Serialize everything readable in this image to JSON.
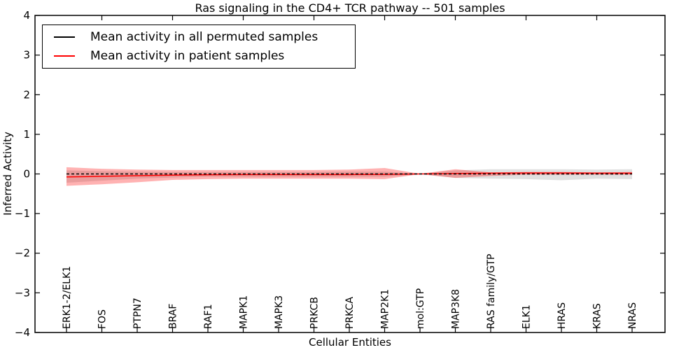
{
  "title": "Ras signaling in the CD4+ TCR pathway -- 501 samples",
  "axes": {
    "ylabel": "Inferred Activity",
    "xlabel": "Cellular Entities"
  },
  "legend": {
    "items": [
      {
        "label": "Mean activity in all permuted samples",
        "color": "#000000",
        "linestyle": "dashed"
      },
      {
        "label": "Mean activity in patient samples",
        "color": "#ff0000",
        "linestyle": "solid"
      }
    ],
    "position": "upper left"
  },
  "colors": {
    "frame": "#000000",
    "background": "#ffffff",
    "permuted_line": "#000000",
    "patient_line": "#ff0000",
    "permuted_band": "#000000",
    "patient_band": "#ff0000"
  },
  "chart_data": {
    "type": "line",
    "title": "Ras signaling in the CD4+ TCR pathway -- 501 samples",
    "xlabel": "Cellular Entities",
    "ylabel": "Inferred Activity",
    "ylim": [
      -4,
      4
    ],
    "yticks": [
      4,
      3,
      2,
      1,
      0,
      -1,
      -2,
      -3,
      -4
    ],
    "ytick_labels": [
      "4",
      "3",
      "2",
      "1",
      "0",
      "−1",
      "−2",
      "−3",
      "−4"
    ],
    "grid": false,
    "legend_position": "upper left",
    "categories": [
      "ERK1-2/ELK1",
      "FOS",
      "PTPN7",
      "BRAF",
      "RAF1",
      "MAPK1",
      "MAPK3",
      "PRKCB",
      "PRKCA",
      "MAP2K1",
      "mol:GTP",
      "MAP3K8",
      "RAS family/GTP",
      "ELK1",
      "HRAS",
      "KRAS",
      "NRAS"
    ],
    "series": [
      {
        "name": "Mean activity in all permuted samples",
        "color": "#000000",
        "linestyle": "dashed",
        "values": [
          0,
          0,
          0,
          0,
          0,
          0,
          0,
          0,
          0,
          0,
          0,
          0,
          0,
          0,
          0,
          0,
          0
        ]
      },
      {
        "name": "Mean activity in patient samples",
        "color": "#ff0000",
        "linestyle": "solid",
        "values": [
          -0.075,
          -0.06,
          -0.045,
          -0.03,
          -0.02,
          -0.015,
          -0.015,
          -0.015,
          -0.015,
          -0.01,
          0,
          0.01,
          0.02,
          0.025,
          0.025,
          0.02,
          0.02
        ]
      }
    ],
    "bands": [
      {
        "name": "permuted-samples-std-band",
        "color": "#000000",
        "opacity": 0.12,
        "upper": [
          0.09,
          0.07,
          0.06,
          0.05,
          0.05,
          0.05,
          0.05,
          0.05,
          0.06,
          0.06,
          0.005,
          0.09,
          0.12,
          0.12,
          0.12,
          0.11,
          0.12
        ],
        "lower": [
          -0.22,
          -0.17,
          -0.12,
          -0.09,
          -0.07,
          -0.07,
          -0.07,
          -0.07,
          -0.07,
          -0.07,
          -0.005,
          -0.1,
          -0.12,
          -0.13,
          -0.16,
          -0.12,
          -0.13
        ]
      },
      {
        "name": "patient-samples-std-band",
        "color": "#ff0000",
        "opacity": 0.3,
        "upper": [
          0.17,
          0.13,
          0.11,
          0.1,
          0.1,
          0.1,
          0.1,
          0.1,
          0.11,
          0.15,
          0.005,
          0.12,
          0.04,
          0.05,
          0.05,
          0.04,
          0.05
        ],
        "lower": [
          -0.3,
          -0.26,
          -0.21,
          -0.15,
          -0.13,
          -0.12,
          -0.12,
          -0.12,
          -0.12,
          -0.13,
          -0.005,
          -0.1,
          -0.05,
          -0.02,
          -0.02,
          -0.02,
          -0.02
        ]
      }
    ]
  }
}
